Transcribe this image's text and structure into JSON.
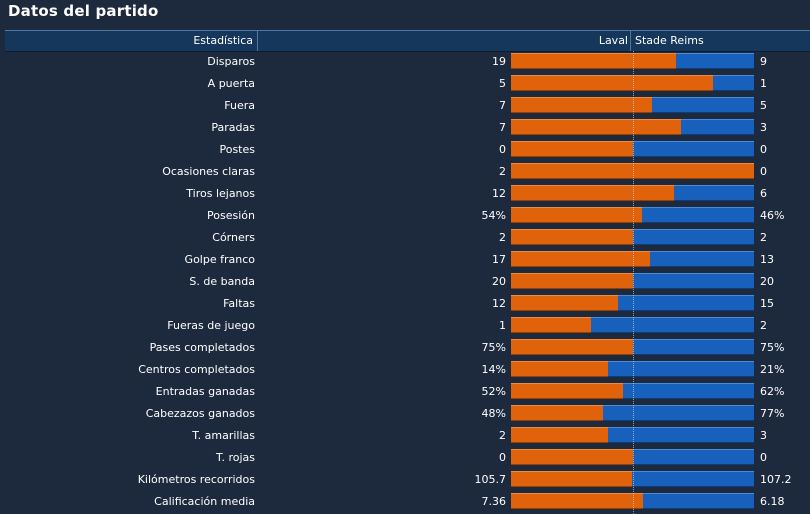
{
  "title": "Datos del partido",
  "header": {
    "stat": "Estadística",
    "home": "Laval",
    "away": "Stade Reims"
  },
  "colors": {
    "home": "#e0620a",
    "away": "#1761bd",
    "background": "#1d2a3d",
    "header": "#16375c"
  },
  "stats": [
    {
      "label": "Disparos",
      "home": "19",
      "away": "9",
      "home_share": 0.68
    },
    {
      "label": "A puerta",
      "home": "5",
      "away": "1",
      "home_share": 0.83
    },
    {
      "label": "Fuera",
      "home": "7",
      "away": "5",
      "home_share": 0.58
    },
    {
      "label": "Paradas",
      "home": "7",
      "away": "3",
      "home_share": 0.7
    },
    {
      "label": "Postes",
      "home": "0",
      "away": "0",
      "home_share": 0.5
    },
    {
      "label": "Ocasiones claras",
      "home": "2",
      "away": "0",
      "home_share": 1.0
    },
    {
      "label": "Tiros lejanos",
      "home": "12",
      "away": "6",
      "home_share": 0.67
    },
    {
      "label": "Posesión",
      "home": "54%",
      "away": "46%",
      "home_share": 0.54
    },
    {
      "label": "Córners",
      "home": "2",
      "away": "2",
      "home_share": 0.5
    },
    {
      "label": "Golpe franco",
      "home": "17",
      "away": "13",
      "home_share": 0.57
    },
    {
      "label": "S. de banda",
      "home": "20",
      "away": "20",
      "home_share": 0.5
    },
    {
      "label": "Faltas",
      "home": "12",
      "away": "15",
      "home_share": 0.44
    },
    {
      "label": "Fueras de juego",
      "home": "1",
      "away": "2",
      "home_share": 0.33
    },
    {
      "label": "Pases completados",
      "home": "75%",
      "away": "75%",
      "home_share": 0.5
    },
    {
      "label": "Centros completados",
      "home": "14%",
      "away": "21%",
      "home_share": 0.4
    },
    {
      "label": "Entradas ganadas",
      "home": "52%",
      "away": "62%",
      "home_share": 0.46
    },
    {
      "label": "Cabezazos ganados",
      "home": "48%",
      "away": "77%",
      "home_share": 0.38
    },
    {
      "label": "T. amarillas",
      "home": "2",
      "away": "3",
      "home_share": 0.4
    },
    {
      "label": "T. rojas",
      "home": "0",
      "away": "0",
      "home_share": 0.5
    },
    {
      "label": "Kilómetros recorridos",
      "home": "105.7",
      "away": "107.2",
      "home_share": 0.496
    },
    {
      "label": "Calificación media",
      "home": "7.36",
      "away": "6.18",
      "home_share": 0.543
    }
  ]
}
